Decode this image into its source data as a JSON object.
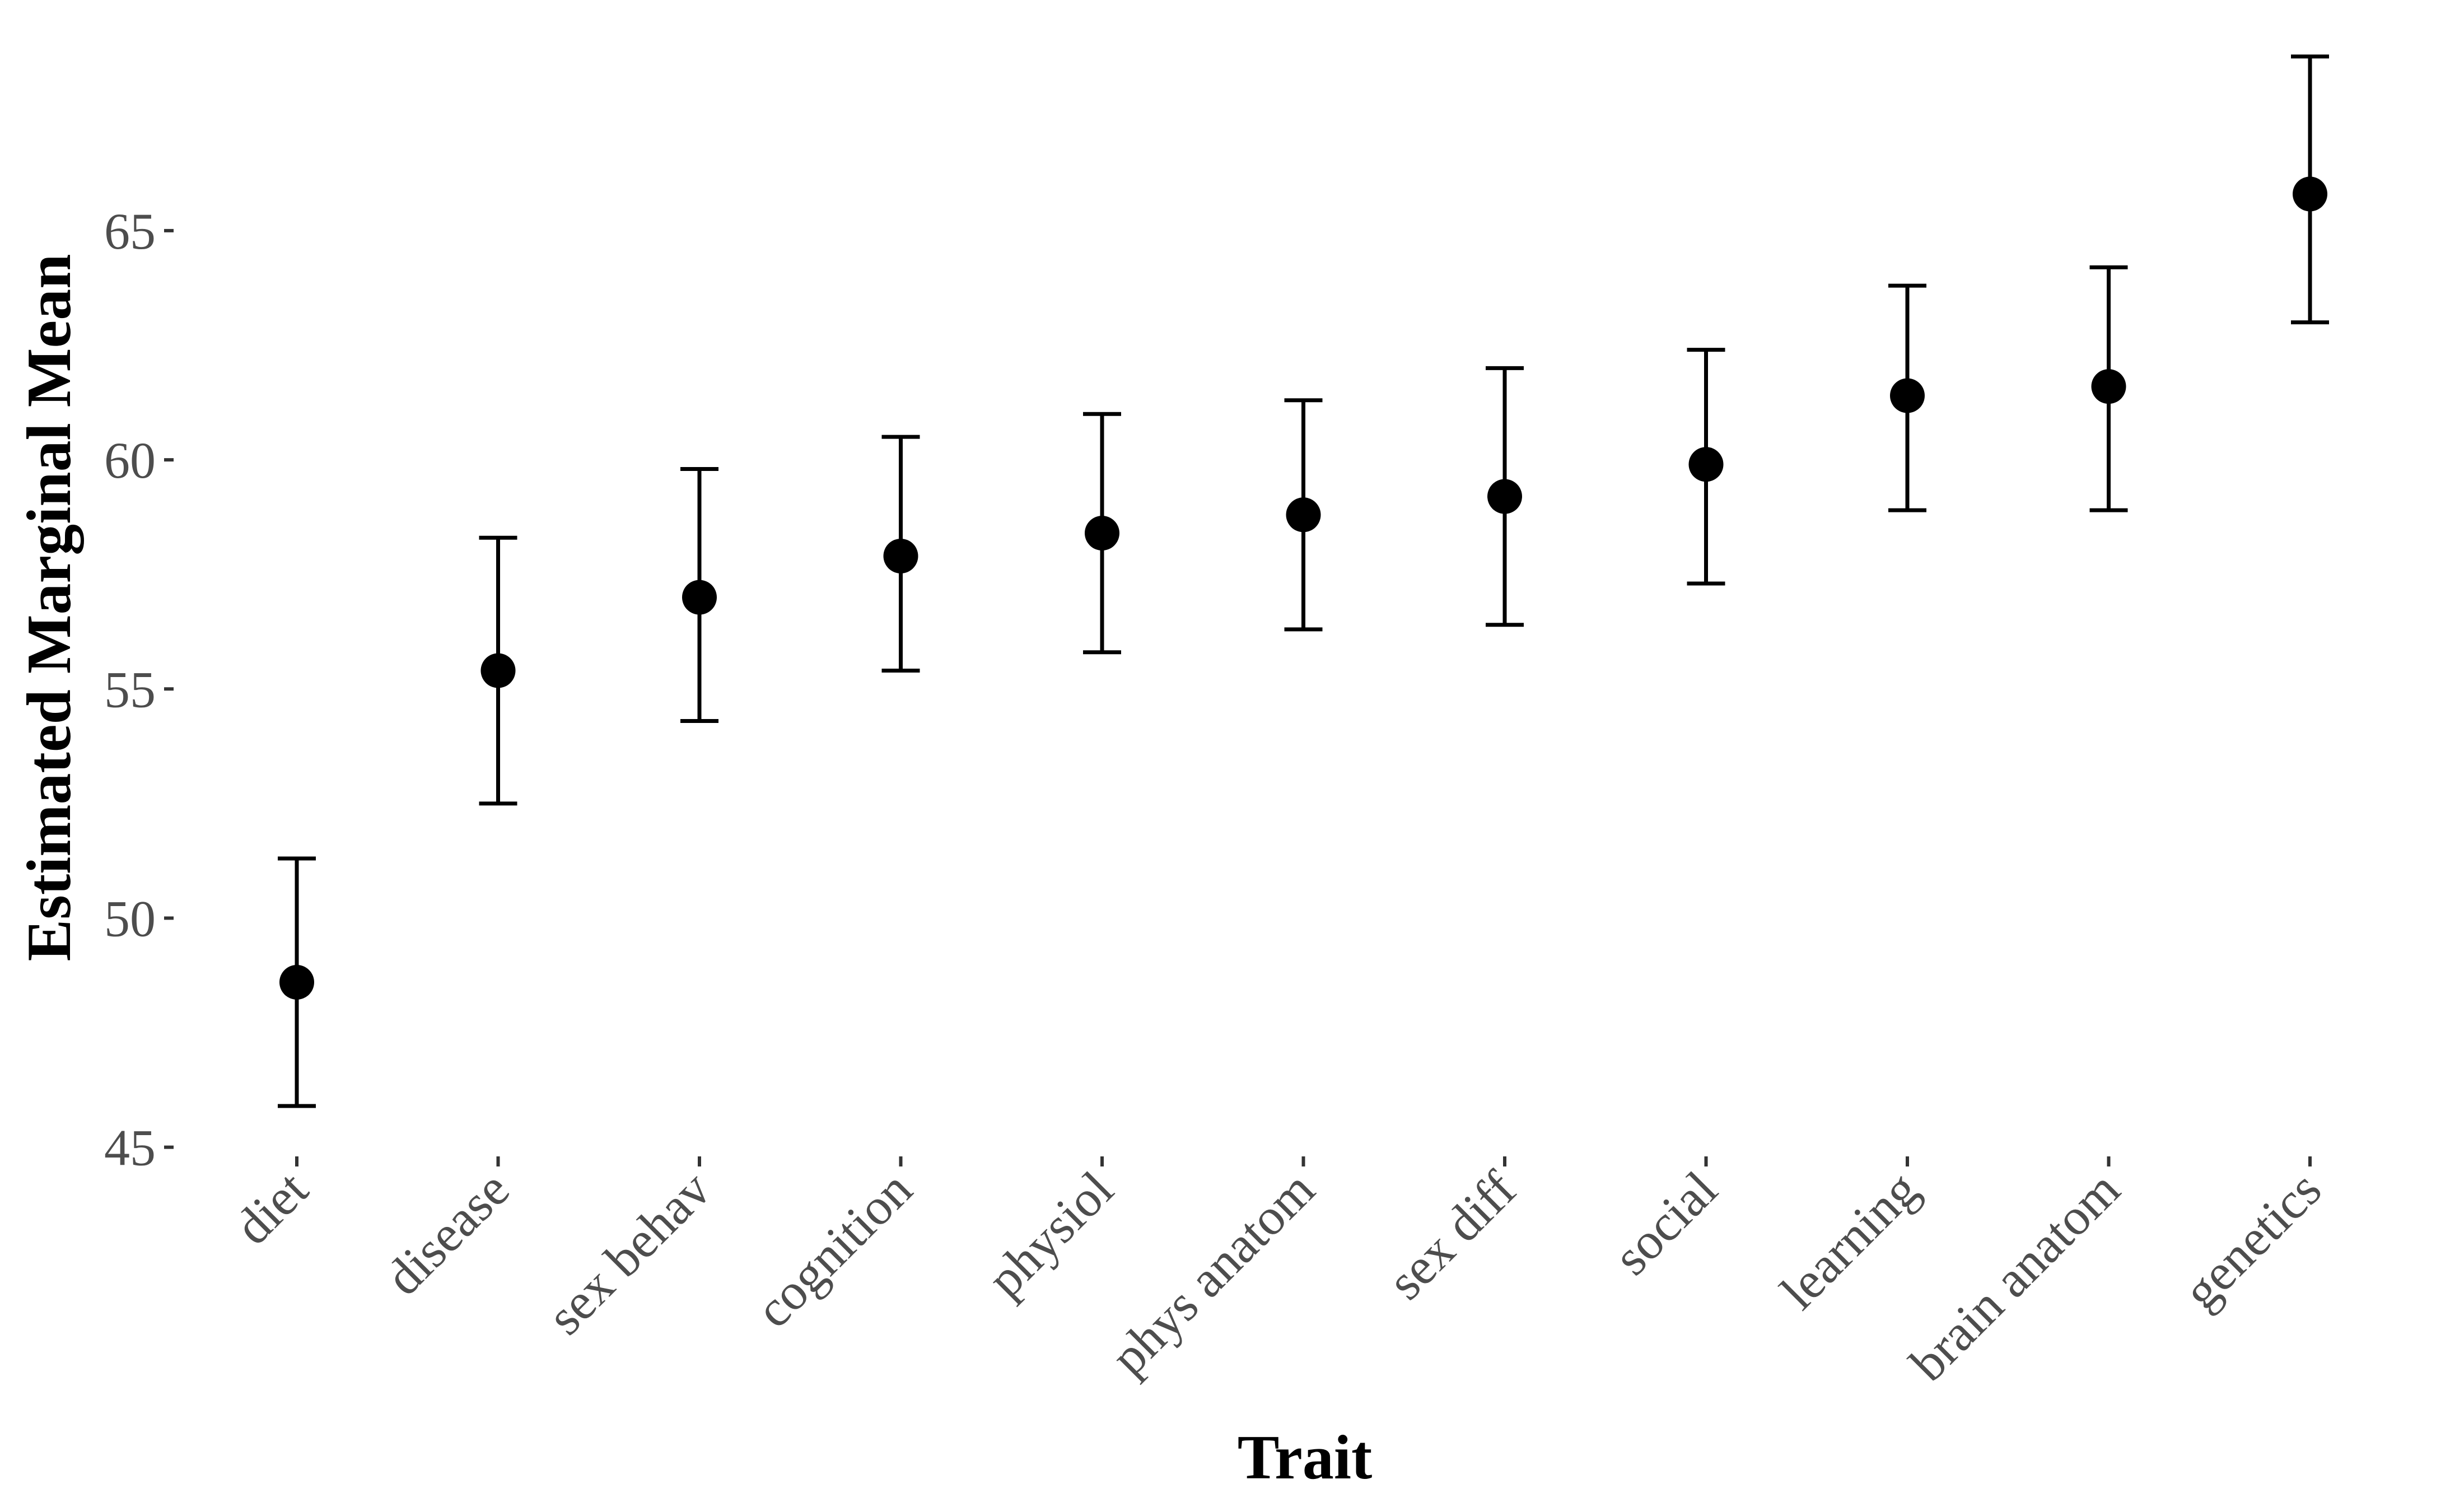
{
  "chart_data": {
    "type": "scatter",
    "title": "",
    "xlabel": "Trait",
    "ylabel": "Estimated Marginal Mean",
    "ylim": [
      44.8,
      69.3
    ],
    "yticks": [
      45,
      50,
      55,
      60,
      65
    ],
    "grid": false,
    "legend": "none",
    "categories": [
      "diet",
      "disease",
      "sex behav",
      "cognition",
      "physiol",
      "phys anatom",
      "sex diff",
      "social",
      "learning",
      "brain anatom",
      "genetics"
    ],
    "series": [
      {
        "values": [
          48.6,
          55.4,
          57.0,
          57.9,
          58.4,
          58.8,
          59.2,
          59.9,
          61.4,
          61.6,
          65.8
        ],
        "lower": [
          45.9,
          52.5,
          54.3,
          55.4,
          55.8,
          56.3,
          56.4,
          57.3,
          58.9,
          58.9,
          63.0
        ],
        "upper": [
          51.3,
          58.3,
          59.8,
          60.5,
          61.0,
          61.3,
          62.0,
          62.4,
          63.8,
          64.2,
          68.8
        ]
      }
    ],
    "colors": {
      "point": "#000000",
      "errorbar": "#000000",
      "tick_text": "#4d4d4d",
      "axis_title": "#000000"
    }
  }
}
